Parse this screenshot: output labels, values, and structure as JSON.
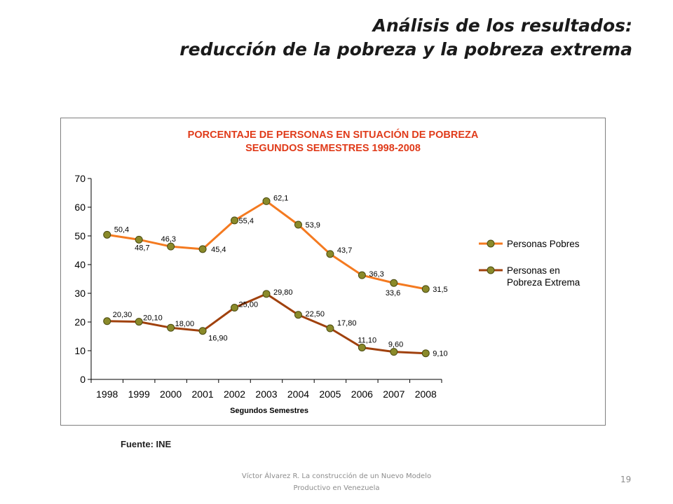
{
  "slide": {
    "title_line1": "Análisis de los resultados:",
    "title_line2": "reducción de la pobreza y la pobreza extrema",
    "source": "Fuente: INE",
    "footer_line1": "Víctor Álvarez R. La construcción de un Nuevo Modelo",
    "footer_line2": "Productivo en Venezuela",
    "page_number": "19"
  },
  "chart_data": {
    "type": "line",
    "title": "PORCENTAJE DE PERSONAS EN SITUACIÓN DE POBREZA",
    "subtitle": "SEGUNDOS SEMESTRES 1998-2008",
    "xlabel": "Segundos Semestres",
    "ylabel": "",
    "ylim": [
      0,
      70
    ],
    "yticks": [
      0,
      10,
      20,
      30,
      40,
      50,
      60,
      70
    ],
    "categories": [
      "1998",
      "1999",
      "2000",
      "2001",
      "2002",
      "2003",
      "2004",
      "2005",
      "2006",
      "2007",
      "2008"
    ],
    "grid": false,
    "legend_position": "right",
    "marker_color": "#8a8a2a",
    "series": [
      {
        "name": "Personas Pobres",
        "color": "#f47a20",
        "values": [
          50.4,
          48.7,
          46.3,
          45.4,
          55.4,
          62.1,
          53.9,
          43.7,
          36.3,
          33.6,
          31.5
        ],
        "labels": [
          "50,4",
          "48,7",
          "46,3",
          "45,4",
          "55,4",
          "62,1",
          "53,9",
          "43,7",
          "36,3",
          "33,6",
          "31,5"
        ]
      },
      {
        "name": "Personas en Pobreza Extrema",
        "legend_lines": [
          "Personas en",
          "Pobreza Extrema"
        ],
        "color": "#a0410d",
        "values": [
          20.3,
          20.1,
          18.0,
          16.9,
          25.0,
          29.8,
          22.5,
          17.8,
          11.1,
          9.6,
          9.1
        ],
        "labels": [
          "20,30",
          "20,10",
          "18,00",
          "16,90",
          "25,00",
          "29,80",
          "22,50",
          "17,80",
          "11,10",
          "9,60",
          "9,10"
        ]
      }
    ]
  }
}
